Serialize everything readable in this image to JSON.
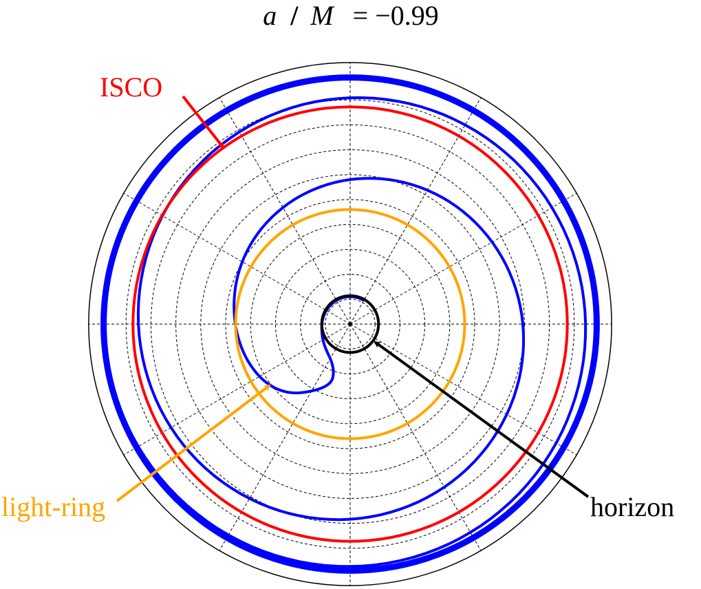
{
  "chart_data": {
    "type": "polar-line",
    "title": {
      "var_a": "a",
      "slash": "/",
      "var_m": "M",
      "value": "= −0.99"
    },
    "grid": true,
    "radial_grid": [
      1,
      2,
      3,
      4,
      5,
      6,
      7,
      8,
      9
    ],
    "outer_radius": 10.5,
    "angular_grid_deg": [
      0,
      30,
      60,
      90,
      120,
      150,
      180,
      210,
      240,
      270,
      300,
      330
    ],
    "series": [
      {
        "name": "ISCO",
        "role": "circle",
        "r": 8.72,
        "color": "#ff0000"
      },
      {
        "name": "light-ring",
        "role": "circle",
        "r": 4.6,
        "color": "#ffa500"
      },
      {
        "name": "horizon",
        "role": "circle",
        "r": 1.14,
        "color": "#000000"
      },
      {
        "role": "trajectory",
        "color": "#0000ff",
        "outer_r": 9.9,
        "outer_theta_deg": 105,
        "points": [
          [
            9.9,
            105
          ],
          [
            9.9,
            165
          ],
          [
            9.8,
            225
          ],
          [
            9.7,
            285
          ],
          [
            9.5,
            345
          ],
          [
            9.3,
            45
          ],
          [
            9.0,
            105
          ],
          [
            8.6,
            165
          ],
          [
            8.2,
            225
          ],
          [
            7.7,
            285
          ],
          [
            7.1,
            345
          ],
          [
            6.4,
            45
          ],
          [
            5.6,
            105
          ],
          [
            4.8,
            165
          ],
          [
            4.1,
            215
          ],
          [
            3.1,
            240
          ],
          [
            2.3,
            252
          ],
          [
            1.6,
            240
          ],
          [
            1.2,
            200
          ],
          [
            1.1,
            150
          ],
          [
            1.1,
            120
          ],
          [
            1.1,
            90
          ],
          [
            1.1,
            60
          ]
        ]
      }
    ],
    "annotations": [
      {
        "text": "ISCO",
        "color": "#ff0000",
        "target": "ISCO"
      },
      {
        "text": "light-ring",
        "color": "#ffa500",
        "target": "light-ring"
      },
      {
        "text": "horizon",
        "color": "#000000",
        "target": "horizon"
      }
    ]
  }
}
